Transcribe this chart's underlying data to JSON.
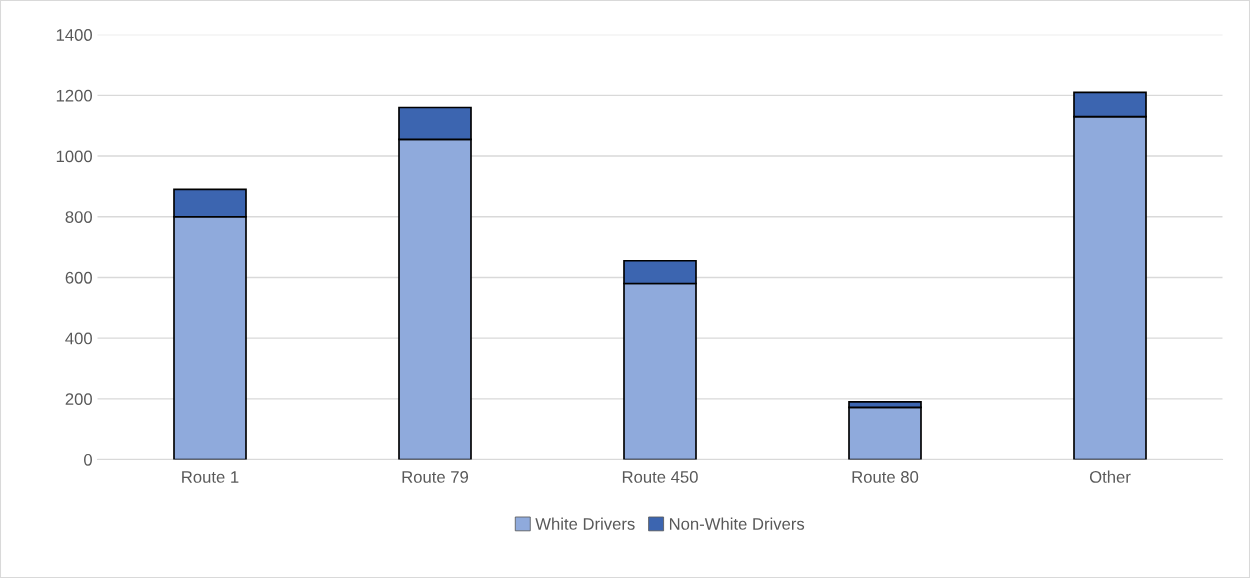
{
  "chart_data": {
    "type": "bar",
    "stacked": true,
    "categories": [
      "Route 1",
      "Route 79",
      "Route 450",
      "Route 80",
      "Other"
    ],
    "series": [
      {
        "name": "White Drivers",
        "color": "#8faadc",
        "values": [
          800,
          1055,
          580,
          172,
          1130
        ]
      },
      {
        "name": "Non-White Drivers",
        "color": "#3c65b0",
        "values": [
          90,
          105,
          75,
          18,
          80
        ]
      }
    ],
    "ylim": [
      0,
      1400
    ],
    "yticks": [
      0,
      200,
      400,
      600,
      800,
      1000,
      1200,
      1400
    ],
    "grid": "y",
    "legend": "bottom"
  }
}
